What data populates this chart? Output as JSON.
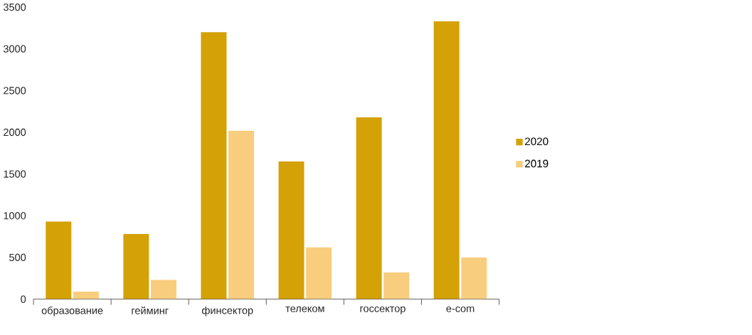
{
  "chart_data": {
    "type": "bar",
    "categories": [
      "образование",
      "гейминг",
      "финсектор",
      "телеком",
      "госсектор",
      "e-com"
    ],
    "series": [
      {
        "name": "2020",
        "color": "#d4a106",
        "values": [
          930,
          780,
          3200,
          1650,
          2180,
          3330
        ]
      },
      {
        "name": "2019",
        "color": "#f9cd7e",
        "values": [
          90,
          230,
          2020,
          620,
          320,
          500
        ]
      }
    ],
    "ylim": [
      0,
      3500
    ],
    "yticks": [
      0,
      500,
      1000,
      1500,
      2000,
      2500,
      3000,
      3500
    ],
    "grid": false,
    "legend": "right"
  }
}
